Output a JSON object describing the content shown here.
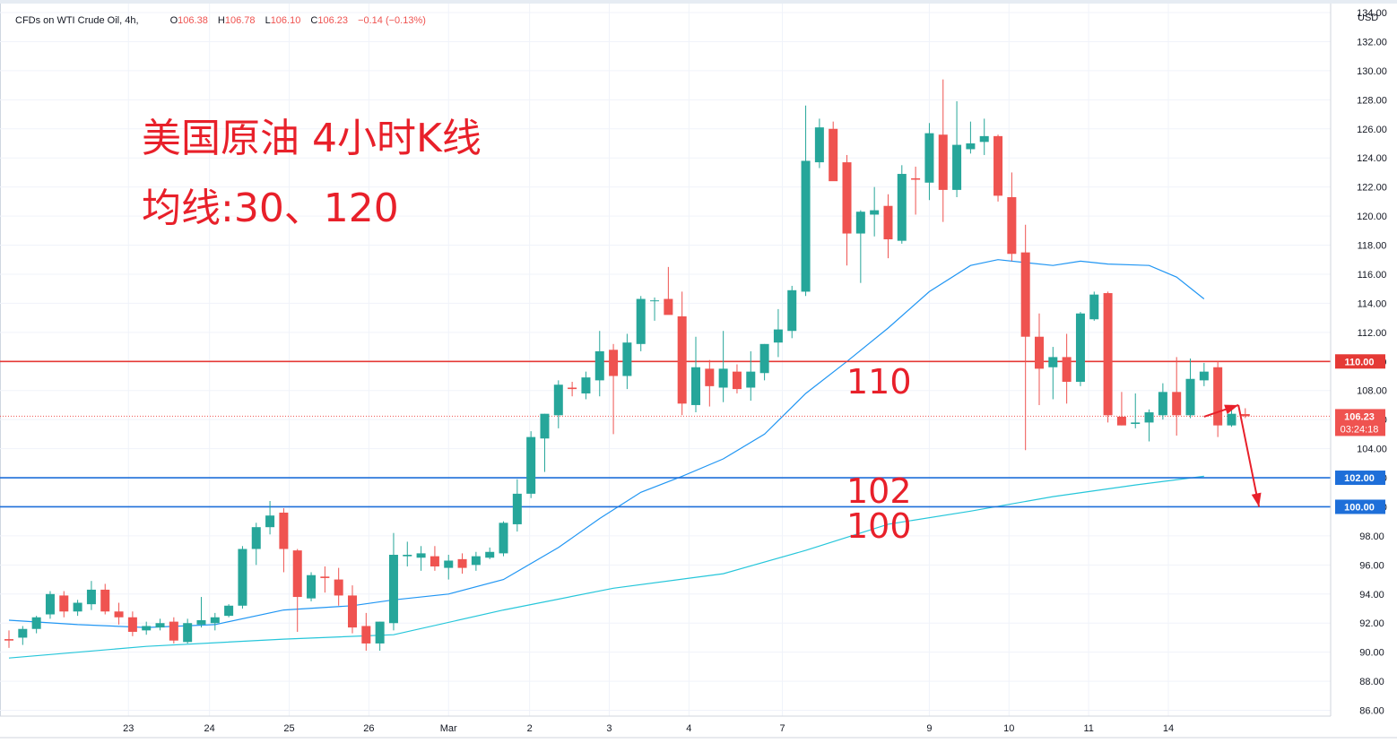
{
  "header": {
    "symbol": "CFDs on WTI Crude Oil, 4h,",
    "o_key": "O",
    "o_val": "106.38",
    "h_key": "H",
    "h_val": "106.78",
    "l_key": "L",
    "l_val": "106.10",
    "c_key": "C",
    "c_val": "106.23",
    "change": "−0.14 (−0.13%)"
  },
  "annotations": {
    "title_line1": "美国原油 4小时K线",
    "title_line2": "均线:30、120",
    "level_110": "110",
    "level_102": "102",
    "level_100": "100"
  },
  "axis": {
    "currency": "USD"
  },
  "colors": {
    "up": "#26a69a",
    "down": "#ef5350",
    "ma30": "#2196f3",
    "ma120": "#26c6da",
    "resistance": "#e53935",
    "support": "#1e6fd9",
    "annotation": "#e8202a"
  },
  "chart_data": {
    "type": "candlestick",
    "y_range": [
      85,
      134
    ],
    "y_ticks": [
      86,
      88,
      90,
      92,
      94,
      96,
      98,
      100,
      102,
      104,
      106,
      108,
      110,
      112,
      114,
      116,
      118,
      120,
      122,
      124,
      126,
      128,
      130,
      132,
      134
    ],
    "x_labels": [
      {
        "label": "23",
        "bar": 8.7
      },
      {
        "label": "24",
        "bar": 14.6
      },
      {
        "label": "25",
        "bar": 20.4
      },
      {
        "label": "26",
        "bar": 26.2
      },
      {
        "label": "Mar",
        "bar": 32.0
      },
      {
        "label": "2",
        "bar": 37.9
      },
      {
        "label": "3",
        "bar": 43.7
      },
      {
        "label": "4",
        "bar": 49.5
      },
      {
        "label": "7",
        "bar": 56.3
      },
      {
        "label": "9",
        "bar": 67.0
      },
      {
        "label": "10",
        "bar": 72.8
      },
      {
        "label": "11",
        "bar": 78.6
      },
      {
        "label": "14",
        "bar": 84.4
      }
    ],
    "candles": [
      [
        90.9,
        91.5,
        90.3,
        90.8
      ],
      [
        91.0,
        91.8,
        90.5,
        91.6
      ],
      [
        91.6,
        92.5,
        91.3,
        92.4
      ],
      [
        92.6,
        94.2,
        92.3,
        94.0
      ],
      [
        93.9,
        94.2,
        92.4,
        92.8
      ],
      [
        92.8,
        93.6,
        92.5,
        93.4
      ],
      [
        93.3,
        94.9,
        92.9,
        94.3
      ],
      [
        94.3,
        94.7,
        92.6,
        92.8
      ],
      [
        92.8,
        93.4,
        91.9,
        92.4
      ],
      [
        92.4,
        92.8,
        91.1,
        91.4
      ],
      [
        91.5,
        92.1,
        91.2,
        91.8
      ],
      [
        91.7,
        92.3,
        91.5,
        92.0
      ],
      [
        92.1,
        92.4,
        90.6,
        90.8
      ],
      [
        90.7,
        92.3,
        90.6,
        92.0
      ],
      [
        91.9,
        93.8,
        91.7,
        92.2
      ],
      [
        92.0,
        92.7,
        91.5,
        92.4
      ],
      [
        92.5,
        93.3,
        92.4,
        93.2
      ],
      [
        93.2,
        97.3,
        93.0,
        97.1
      ],
      [
        97.1,
        98.9,
        96.0,
        98.6
      ],
      [
        98.6,
        100.4,
        98.1,
        99.4
      ],
      [
        99.6,
        99.9,
        95.5,
        97.1
      ],
      [
        97.0,
        97.1,
        91.4,
        93.8
      ],
      [
        93.7,
        95.5,
        93.5,
        95.3
      ],
      [
        95.2,
        95.9,
        94.1,
        95.1
      ],
      [
        95.0,
        95.8,
        93.2,
        93.9
      ],
      [
        93.9,
        94.6,
        91.3,
        91.7
      ],
      [
        91.8,
        92.7,
        90.1,
        90.6
      ],
      [
        90.6,
        92.1,
        90.1,
        92.1
      ],
      [
        92.0,
        98.2,
        91.5,
        96.7
      ],
      [
        96.6,
        97.6,
        95.9,
        96.7
      ],
      [
        96.5,
        97.3,
        95.6,
        96.8
      ],
      [
        96.6,
        97.3,
        95.6,
        95.9
      ],
      [
        95.8,
        96.7,
        95.0,
        96.3
      ],
      [
        96.4,
        96.8,
        95.4,
        95.8
      ],
      [
        96.0,
        96.9,
        95.6,
        96.6
      ],
      [
        96.5,
        97.2,
        96.4,
        96.9
      ],
      [
        96.8,
        99.0,
        96.6,
        98.9
      ],
      [
        98.8,
        101.9,
        98.3,
        100.9
      ],
      [
        100.9,
        105.2,
        100.6,
        104.8
      ],
      [
        104.7,
        106.4,
        102.4,
        106.4
      ],
      [
        106.3,
        108.7,
        105.4,
        108.4
      ],
      [
        108.2,
        108.6,
        107.6,
        108.1
      ],
      [
        107.8,
        109.3,
        107.4,
        108.9
      ],
      [
        108.7,
        112.1,
        107.6,
        110.7
      ],
      [
        110.8,
        111.2,
        105.0,
        109.0
      ],
      [
        109.0,
        111.9,
        108.1,
        111.3
      ],
      [
        111.2,
        114.5,
        110.7,
        114.3
      ],
      [
        114.2,
        114.4,
        112.8,
        114.2
      ],
      [
        114.3,
        116.5,
        113.4,
        113.2
      ],
      [
        113.1,
        114.8,
        106.3,
        107.1
      ],
      [
        107.0,
        111.7,
        106.5,
        109.6
      ],
      [
        109.5,
        110.1,
        106.9,
        108.3
      ],
      [
        108.2,
        112.1,
        107.2,
        109.5
      ],
      [
        109.3,
        109.8,
        107.8,
        108.1
      ],
      [
        108.2,
        110.7,
        107.3,
        109.3
      ],
      [
        109.2,
        111.2,
        108.7,
        111.2
      ],
      [
        111.3,
        113.6,
        110.3,
        112.2
      ],
      [
        112.1,
        115.2,
        111.6,
        114.9
      ],
      [
        114.8,
        127.6,
        114.5,
        123.8
      ],
      [
        123.7,
        126.7,
        123.3,
        126.1
      ],
      [
        126.0,
        126.5,
        122.5,
        122.4
      ],
      [
        123.7,
        124.2,
        116.6,
        118.8
      ],
      [
        118.8,
        120.4,
        115.4,
        120.3
      ],
      [
        120.1,
        122.0,
        118.6,
        120.4
      ],
      [
        120.7,
        121.5,
        117.1,
        118.4
      ],
      [
        118.3,
        123.5,
        118.1,
        122.9
      ],
      [
        122.6,
        123.4,
        120.1,
        122.5
      ],
      [
        122.3,
        126.4,
        121.1,
        125.7
      ],
      [
        125.6,
        129.4,
        119.6,
        121.8
      ],
      [
        121.8,
        127.9,
        121.3,
        124.9
      ],
      [
        124.6,
        126.5,
        124.3,
        125.0
      ],
      [
        125.1,
        126.7,
        124.2,
        125.5
      ],
      [
        125.5,
        125.6,
        121.0,
        121.4
      ],
      [
        121.3,
        123.0,
        116.9,
        117.4
      ],
      [
        117.5,
        119.4,
        103.9,
        111.7
      ],
      [
        111.7,
        113.3,
        107.0,
        109.5
      ],
      [
        109.6,
        111.0,
        107.4,
        110.3
      ],
      [
        110.3,
        111.9,
        107.1,
        108.6
      ],
      [
        108.6,
        113.4,
        108.3,
        113.3
      ],
      [
        112.9,
        114.8,
        112.8,
        114.6
      ],
      [
        114.7,
        114.8,
        105.8,
        106.3
      ],
      [
        106.2,
        107.9,
        105.6,
        105.6
      ],
      [
        105.7,
        107.8,
        105.4,
        105.8
      ],
      [
        105.8,
        106.7,
        104.5,
        106.5
      ],
      [
        106.3,
        108.5,
        106.0,
        107.9
      ],
      [
        107.9,
        110.3,
        104.9,
        106.3
      ],
      [
        106.3,
        110.2,
        106.1,
        108.8
      ],
      [
        108.7,
        109.9,
        108.3,
        109.3
      ],
      [
        109.6,
        110.0,
        104.8,
        105.6
      ],
      [
        105.6,
        107.0,
        105.5,
        106.4
      ],
      [
        106.38,
        106.78,
        106.1,
        106.23
      ]
    ],
    "series": [
      {
        "kind": "ma30",
        "points": [
          [
            0,
            92.2
          ],
          [
            5,
            91.9
          ],
          [
            10,
            91.7
          ],
          [
            15,
            91.9
          ],
          [
            20,
            92.9
          ],
          [
            25,
            93.2
          ],
          [
            28,
            93.6
          ],
          [
            32,
            94.0
          ],
          [
            36,
            95.0
          ],
          [
            40,
            97.2
          ],
          [
            43,
            99.2
          ],
          [
            46,
            101.0
          ],
          [
            49,
            102.1
          ],
          [
            52,
            103.3
          ],
          [
            55,
            105.0
          ],
          [
            58,
            107.8
          ],
          [
            61,
            110.0
          ],
          [
            64,
            112.3
          ],
          [
            67,
            114.8
          ],
          [
            70,
            116.6
          ],
          [
            72,
            117.0
          ],
          [
            74,
            116.8
          ],
          [
            76,
            116.6
          ],
          [
            78,
            116.9
          ],
          [
            80,
            116.7
          ],
          [
            83,
            116.6
          ],
          [
            85,
            115.8
          ],
          [
            87,
            114.3
          ]
        ]
      },
      {
        "kind": "ma120",
        "points": [
          [
            0,
            89.6
          ],
          [
            10,
            90.4
          ],
          [
            20,
            90.9
          ],
          [
            28,
            91.2
          ],
          [
            36,
            92.9
          ],
          [
            44,
            94.4
          ],
          [
            52,
            95.4
          ],
          [
            58,
            97.0
          ],
          [
            64,
            98.8
          ],
          [
            70,
            99.7
          ],
          [
            76,
            100.7
          ],
          [
            82,
            101.5
          ],
          [
            87,
            102.1
          ]
        ]
      }
    ],
    "horizontal_levels": [
      {
        "value": 110.0,
        "label": "110.00",
        "kind": "resistance"
      },
      {
        "value": 102.0,
        "label": "102.00",
        "kind": "support"
      },
      {
        "value": 100.0,
        "label": "100.00",
        "kind": "support"
      }
    ],
    "current_price": {
      "value": 106.23,
      "label": "106.23",
      "countdown": "03:24:18"
    },
    "projection_arrows": [
      {
        "from": [
          87.0,
          106.2
        ],
        "to": [
          89.5,
          107.0
        ]
      },
      {
        "from": [
          89.5,
          107.0
        ],
        "to": [
          91.0,
          100.0
        ]
      }
    ]
  }
}
